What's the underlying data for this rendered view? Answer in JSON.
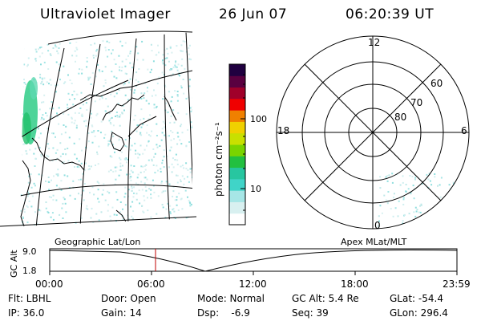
{
  "header": {
    "instrument": "Ultraviolet Imager",
    "date": "26 Jun 07",
    "time": "06:20:39 UT"
  },
  "colorbar": {
    "unit_label": "photon cm⁻²s⁻¹",
    "scale": "log",
    "ticks": [
      "100",
      "10"
    ],
    "colors": [
      "#ffffff",
      "#d8f0f0",
      "#a6e6e6",
      "#40d4c8",
      "#27c6a0",
      "#22c040",
      "#7ad400",
      "#c8e000",
      "#f0d000",
      "#f08000",
      "#f00000",
      "#a0002a",
      "#5a0040",
      "#200040"
    ]
  },
  "polar_plot": {
    "mlt_labels": {
      "top": "12",
      "right": "6",
      "bottom": "0",
      "left": "18"
    },
    "lat_labels": [
      "60",
      "70",
      "80"
    ]
  },
  "timeline": {
    "left_label": "Geographic Lat/Lon",
    "right_label": "Apex MLat/MLT",
    "axis_title": "GC Alt",
    "y_ticks": [
      "9.0",
      "1.8"
    ],
    "x_ticks": [
      "00:00",
      "06:00",
      "12:00",
      "18:00",
      "23:59"
    ]
  },
  "info": {
    "filter": "Flt: LBHL",
    "ip": "IP: 36.0",
    "door": "Door: Open",
    "gain": "Gain: 14",
    "mode": "Mode: Normal",
    "dsp": "Dsp:    -6.9",
    "gc_alt": "GC Alt: 5.4 Re",
    "seq": "Seq: 39",
    "glat": "GLat: -54.4",
    "glon": "GLon: 296.4"
  }
}
